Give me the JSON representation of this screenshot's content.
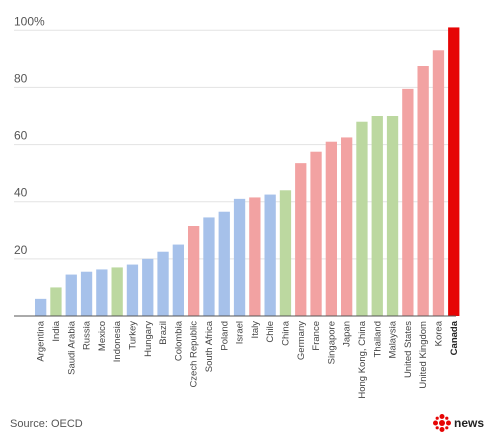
{
  "source": "Source: OECD",
  "logo": {
    "text": "news",
    "icon": "cbc-gem-icon",
    "color": "#e60505"
  },
  "chart_data": {
    "type": "bar",
    "categories": [
      "Argentina",
      "India",
      "Saudi Arabia",
      "Russia",
      "Mexico",
      "Indonesia",
      "Turkey",
      "Hungary",
      "Brazil",
      "Colombia",
      "Czech Republic",
      "South Africa",
      "Poland",
      "Israel",
      "Italy",
      "Chile",
      "China",
      "Germany",
      "France",
      "Singapore",
      "Japan",
      "Hong Kong, China",
      "Thailand",
      "Malaysia",
      "United States",
      "United Kingdom",
      "Korea",
      "Canada"
    ],
    "values": [
      6,
      10,
      14.5,
      15.5,
      16.3,
      17,
      18,
      20,
      22.5,
      25,
      31.5,
      34.5,
      36.5,
      41,
      41.5,
      42.5,
      44,
      53.5,
      57.5,
      61,
      62.5,
      68,
      70,
      70,
      79.5,
      87.5,
      93,
      101
    ],
    "colors": [
      "#a6c1ea",
      "#bcd8a0",
      "#a6c1ea",
      "#a6c1ea",
      "#a6c1ea",
      "#bcd8a0",
      "#a6c1ea",
      "#a6c1ea",
      "#a6c1ea",
      "#a6c1ea",
      "#f2a2a2",
      "#a6c1ea",
      "#a6c1ea",
      "#a6c1ea",
      "#f2a2a2",
      "#a6c1ea",
      "#bcd8a0",
      "#f2a2a2",
      "#f2a2a2",
      "#f2a2a2",
      "#f2a2a2",
      "#bcd8a0",
      "#bcd8a0",
      "#bcd8a0",
      "#f2a2a2",
      "#f2a2a2",
      "#f2a2a2",
      "#e60505"
    ],
    "highlight": "Canada",
    "yticks": [
      "20",
      "40",
      "60",
      "80",
      "100%"
    ],
    "ytick_values": [
      20,
      40,
      60,
      80,
      100
    ],
    "ylim": [
      0,
      105
    ],
    "grid": true,
    "title": "",
    "xlabel": "",
    "ylabel": ""
  }
}
